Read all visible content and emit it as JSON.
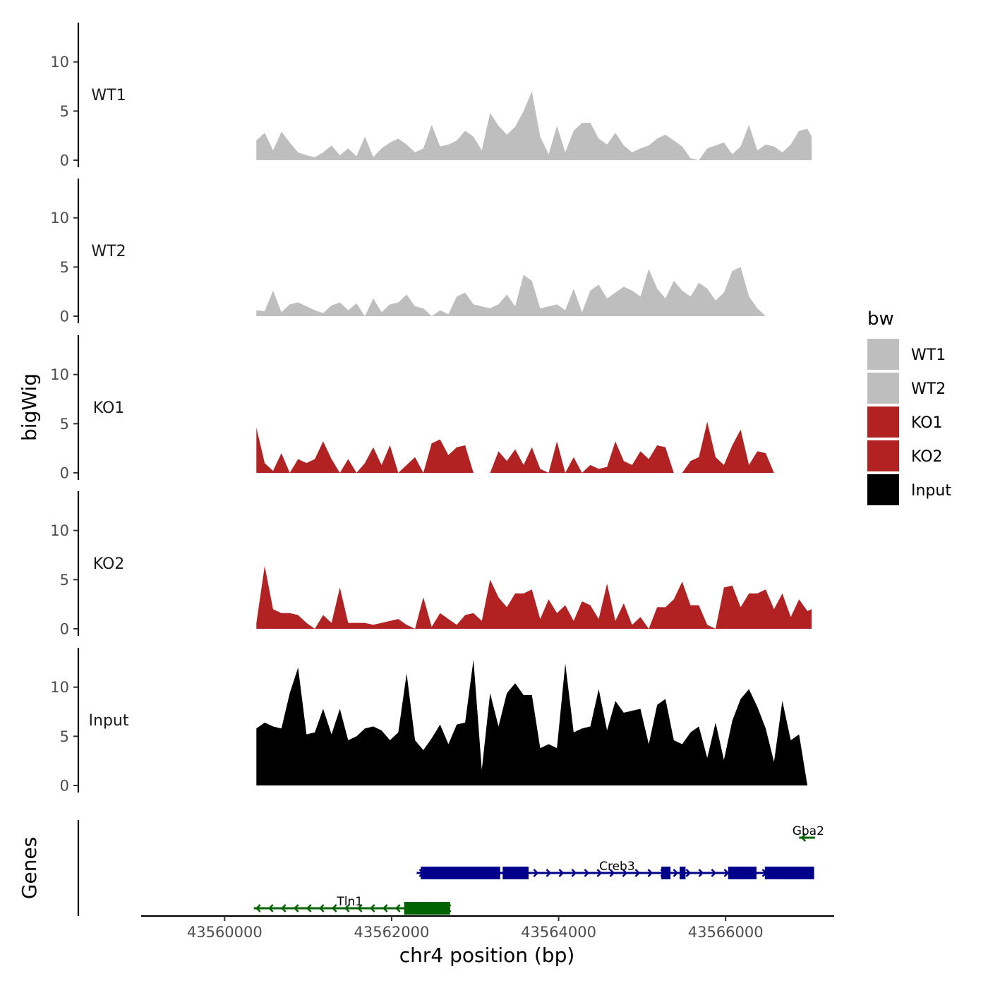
{
  "chart_data": {
    "type": "area",
    "title": "",
    "xlabel": "chr4 position (bp)",
    "ylabel": "bigWig",
    "genes_label": "Genes",
    "xlim": [
      43559000,
      43567300
    ],
    "ylim": [
      0,
      14
    ],
    "x_ticks": [
      43560000,
      43562000,
      43564000,
      43566000
    ],
    "x_tick_labels": [
      "43560000",
      "43562000",
      "43564000",
      "43566000"
    ],
    "y_ticks": [
      0,
      5,
      10
    ],
    "y_tick_labels": [
      "0",
      "5",
      "10"
    ],
    "legend": {
      "title": "bw",
      "entries": [
        {
          "label": "WT1",
          "color": "#bebebe"
        },
        {
          "label": "WT2",
          "color": "#bebebe"
        },
        {
          "label": "KO1",
          "color": "#b22222"
        },
        {
          "label": "KO2",
          "color": "#b22222"
        },
        {
          "label": "Input",
          "color": "#000000"
        }
      ]
    },
    "x": [
      43560380,
      43560480,
      43560580,
      43560680,
      43560780,
      43560880,
      43560980,
      43561080,
      43561180,
      43561280,
      43561380,
      43561480,
      43561580,
      43561680,
      43561780,
      43561880,
      43561980,
      43562080,
      43562180,
      43562280,
      43562380,
      43562480,
      43562580,
      43562680,
      43562780,
      43562880,
      43562980,
      43563080,
      43563180,
      43563280,
      43563380,
      43563480,
      43563580,
      43563680,
      43563780,
      43563880,
      43563980,
      43564080,
      43564180,
      43564280,
      43564380,
      43564480,
      43564580,
      43564680,
      43564780,
      43564880,
      43564980,
      43565080,
      43565180,
      43565280,
      43565380,
      43565480,
      43565580,
      43565680,
      43565780,
      43565880,
      43565980,
      43566080,
      43566180,
      43566280,
      43566380,
      43566480,
      43566580,
      43566680,
      43566780,
      43566880,
      43566980,
      43567030
    ],
    "series": [
      {
        "name": "WT1",
        "color": "#bebebe",
        "values": [
          2.0,
          2.8,
          1.0,
          2.9,
          1.8,
          0.8,
          0.5,
          0.3,
          0.8,
          1.5,
          0.5,
          1.2,
          0.4,
          2.4,
          0.3,
          1.2,
          1.8,
          2.2,
          1.6,
          0.8,
          1.2,
          3.6,
          1.4,
          1.6,
          2.0,
          3.0,
          2.4,
          1.0,
          4.8,
          3.5,
          2.6,
          3.4,
          5.0,
          7.0,
          2.4,
          0.6,
          3.5,
          0.8,
          3.0,
          3.8,
          3.8,
          2.2,
          1.6,
          2.8,
          1.5,
          0.8,
          1.2,
          1.5,
          2.2,
          2.6,
          2.0,
          1.4,
          0.2,
          0.0,
          1.2,
          1.5,
          1.8,
          0.6,
          1.4,
          3.6,
          1.0,
          1.6,
          1.4,
          0.8,
          1.6,
          3.0,
          3.2,
          2.4
        ]
      },
      {
        "name": "WT2",
        "color": "#bebebe",
        "values": [
          0.6,
          0.5,
          2.6,
          0.4,
          1.2,
          1.4,
          1.0,
          0.6,
          0.3,
          1.1,
          1.4,
          0.6,
          1.3,
          0.0,
          1.8,
          0.4,
          1.2,
          1.4,
          2.2,
          1.0,
          0.8,
          0.0,
          0.6,
          0.2,
          2.0,
          2.4,
          1.2,
          1.0,
          0.8,
          1.2,
          2.2,
          1.0,
          4.2,
          3.6,
          0.8,
          1.0,
          1.2,
          0.6,
          2.8,
          0.4,
          2.6,
          3.2,
          1.8,
          2.4,
          3.0,
          2.6,
          2.0,
          4.8,
          2.8,
          1.8,
          3.6,
          2.6,
          2.0,
          3.4,
          2.8,
          1.6,
          2.4,
          4.6,
          5.0,
          2.0,
          0.8,
          0.0,
          0.0,
          0.0,
          0.0,
          0.0,
          0.0,
          0.0
        ]
      },
      {
        "name": "KO1",
        "color": "#b22222",
        "values": [
          4.6,
          1.0,
          0.2,
          2.0,
          0.0,
          1.4,
          1.0,
          1.4,
          3.2,
          1.4,
          0.0,
          1.4,
          0.0,
          1.0,
          2.6,
          0.8,
          2.8,
          0.0,
          0.8,
          1.6,
          0.0,
          3.0,
          3.4,
          1.8,
          2.6,
          2.8,
          0.0,
          0.0,
          0.0,
          2.2,
          1.2,
          2.4,
          0.8,
          2.6,
          0.4,
          0.0,
          3.2,
          0.0,
          1.6,
          0.0,
          0.8,
          0.4,
          0.6,
          3.2,
          1.2,
          0.8,
          2.2,
          1.4,
          2.8,
          2.6,
          0.0,
          0.0,
          1.2,
          1.6,
          5.2,
          1.6,
          0.8,
          2.8,
          4.4,
          0.8,
          2.2,
          2.0,
          0.0,
          0.0,
          0.0,
          0.0,
          0.0,
          0.0
        ]
      },
      {
        "name": "KO2",
        "color": "#b22222",
        "values": [
          0.6,
          6.4,
          2.0,
          1.6,
          1.6,
          1.4,
          0.6,
          0.0,
          1.4,
          0.6,
          4.2,
          0.6,
          0.6,
          0.6,
          0.4,
          0.6,
          0.8,
          1.0,
          0.4,
          0.0,
          3.2,
          0.2,
          1.6,
          1.0,
          0.4,
          1.4,
          1.6,
          0.8,
          5.0,
          3.2,
          2.2,
          3.6,
          3.6,
          4.0,
          1.0,
          3.0,
          1.6,
          2.4,
          0.8,
          2.8,
          2.4,
          1.0,
          4.6,
          0.8,
          2.6,
          0.4,
          1.2,
          0.0,
          2.2,
          2.2,
          3.0,
          4.8,
          2.4,
          2.4,
          0.4,
          0.0,
          4.2,
          4.4,
          2.2,
          3.6,
          3.6,
          4.0,
          2.0,
          3.6,
          1.2,
          3.0,
          1.8,
          2.0
        ]
      },
      {
        "name": "Input",
        "color": "#000000",
        "values": [
          5.8,
          6.4,
          6.0,
          5.8,
          9.4,
          12.0,
          5.2,
          5.4,
          7.8,
          5.2,
          7.8,
          4.6,
          5.0,
          5.8,
          6.0,
          5.6,
          4.6,
          5.4,
          11.4,
          4.6,
          3.6,
          4.8,
          6.2,
          4.2,
          6.2,
          6.4,
          12.8,
          1.6,
          9.4,
          6.0,
          9.4,
          10.4,
          9.2,
          9.2,
          3.8,
          4.2,
          3.8,
          12.4,
          5.4,
          5.8,
          6.0,
          9.8,
          5.6,
          8.6,
          7.4,
          7.6,
          7.8,
          4.2,
          8.2,
          8.8,
          4.6,
          4.2,
          5.4,
          6.0,
          2.8,
          6.4,
          2.6,
          6.6,
          8.8,
          9.8,
          8.0,
          5.8,
          2.4,
          8.6,
          4.6,
          5.2,
          0.0,
          0.0
        ]
      }
    ],
    "genes": [
      {
        "name": "Tln1",
        "strand": "-",
        "color": "#006400",
        "start": 43560350,
        "end": 43562700,
        "row": 1,
        "exons": [
          [
            43562150,
            43562700
          ]
        ]
      },
      {
        "name": "Creb3",
        "strand": "+",
        "color": "#00008b",
        "start": 43562300,
        "end": 43567050,
        "row": 2,
        "exons": [
          [
            43562350,
            43563300
          ],
          [
            43563330,
            43563640
          ],
          [
            43565230,
            43565340
          ],
          [
            43565450,
            43565520
          ],
          [
            43566030,
            43566370
          ],
          [
            43566470,
            43567060
          ]
        ]
      },
      {
        "name": "Gba2",
        "strand": "-",
        "color": "#006400",
        "start": 43566880,
        "end": 43567070,
        "row": 3,
        "exons": []
      }
    ]
  }
}
